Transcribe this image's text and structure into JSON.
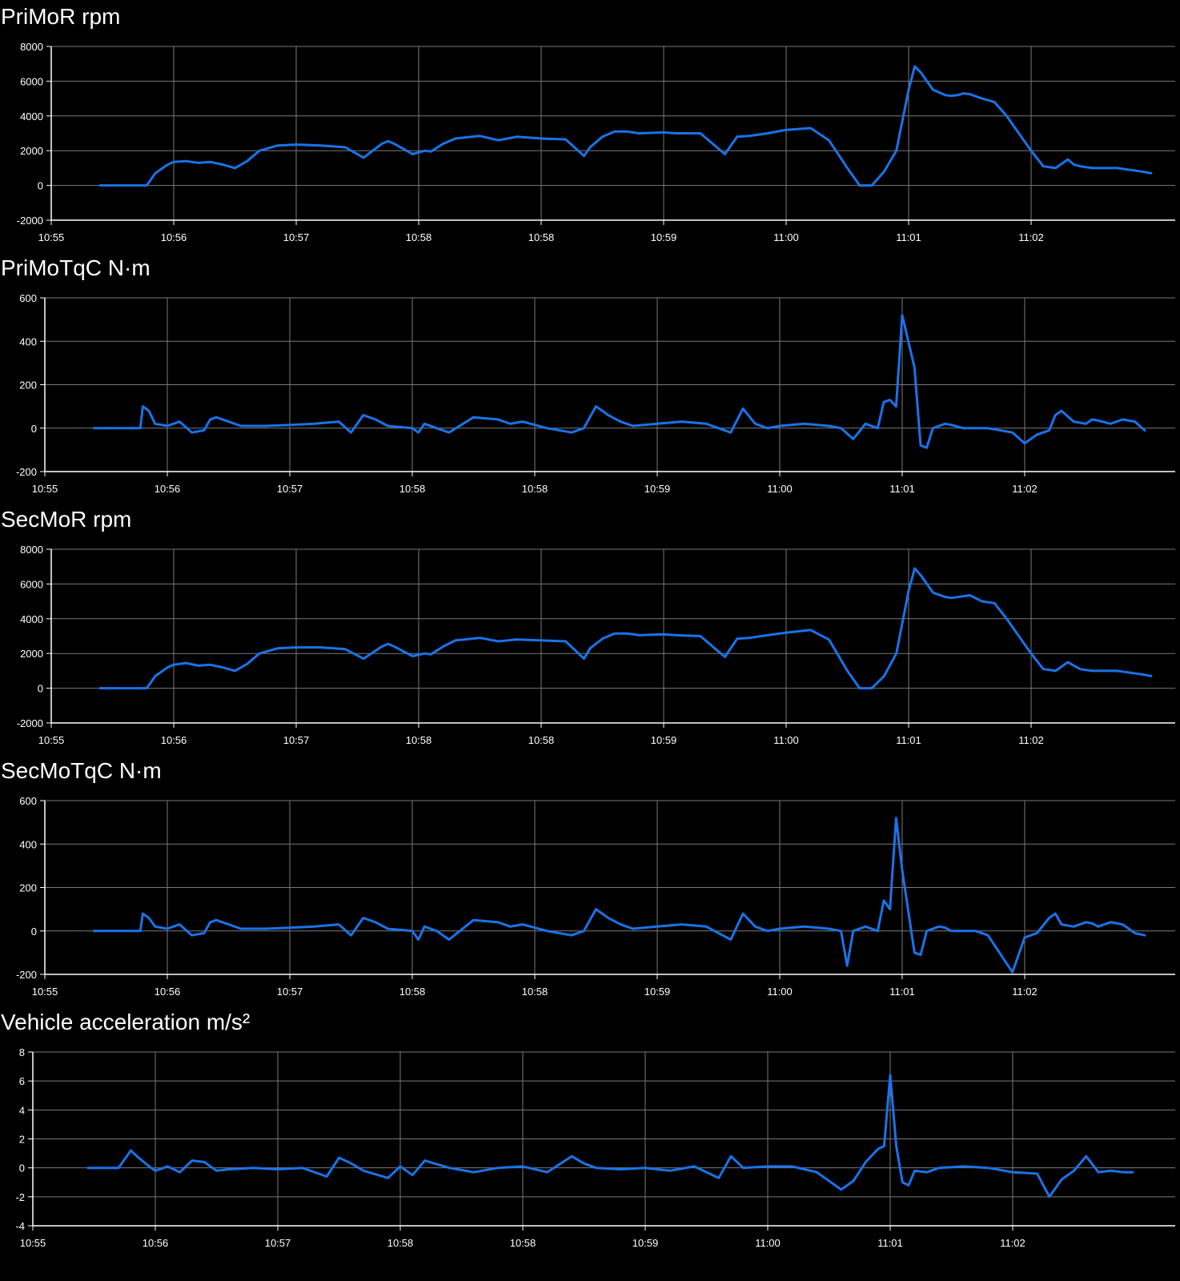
{
  "theme": {
    "background": "#000000",
    "line_color": "#1a73e8",
    "grid_color": "#7a7a7a",
    "text_color": "#ffffff"
  },
  "chart_data": [
    {
      "type": "line",
      "title": "PriMoR rpm",
      "ylim": [
        -2000,
        8000
      ],
      "yticks": [
        "8000",
        "6000",
        "4000",
        "2000",
        "0",
        "-2000"
      ],
      "xticks": [
        "10:55",
        "10:56",
        "10:57",
        "10:58",
        "10:58",
        "10:59",
        "11:00",
        "11:01",
        "11:02"
      ],
      "grid": true,
      "x": [
        0.4,
        0.6,
        0.78,
        0.85,
        0.95,
        1.0,
        1.1,
        1.2,
        1.3,
        1.4,
        1.5,
        1.6,
        1.7,
        1.85,
        2.0,
        2.2,
        2.4,
        2.55,
        2.7,
        2.75,
        2.8,
        2.95,
        3.05,
        3.1,
        3.2,
        3.3,
        3.5,
        3.65,
        3.8,
        4.0,
        4.2,
        4.35,
        4.4,
        4.5,
        4.6,
        4.7,
        4.8,
        5.0,
        5.1,
        5.3,
        5.5,
        5.6,
        5.7,
        5.85,
        6.0,
        6.2,
        6.35,
        6.5,
        6.6,
        6.7,
        6.8,
        6.9,
        7.0,
        7.05,
        7.1,
        7.2,
        7.3,
        7.35,
        7.4,
        7.45,
        7.5,
        7.6,
        7.7,
        7.8,
        8.0,
        8.1,
        8.2,
        8.3,
        8.35,
        8.4,
        8.45,
        8.5,
        8.7,
        8.9,
        8.98
      ],
      "y": [
        0,
        0,
        0,
        700,
        1200,
        1350,
        1400,
        1300,
        1350,
        1200,
        1000,
        1400,
        2000,
        2300,
        2350,
        2300,
        2200,
        1600,
        2400,
        2550,
        2400,
        1800,
        2000,
        1950,
        2400,
        2700,
        2850,
        2600,
        2800,
        2700,
        2650,
        1700,
        2200,
        2800,
        3100,
        3100,
        3000,
        3050,
        3000,
        3000,
        1800,
        2800,
        2850,
        3000,
        3200,
        3300,
        2600,
        1000,
        0,
        0,
        800,
        2000,
        5500,
        6850,
        6500,
        5500,
        5200,
        5150,
        5200,
        5300,
        5250,
        5000,
        4800,
        4000,
        2000,
        1100,
        1000,
        1500,
        1200,
        1100,
        1050,
        1000,
        1000,
        800,
        700
      ]
    },
    {
      "type": "line",
      "title": "PriMoTqC N·m",
      "ylim": [
        -200,
        600
      ],
      "yticks": [
        "600",
        "400",
        "200",
        "0",
        "-200"
      ],
      "xticks": [
        "10:55",
        "10:56",
        "10:57",
        "10:58",
        "10:58",
        "10:59",
        "11:00",
        "11:01",
        "11:02"
      ],
      "grid": true,
      "x": [
        0.4,
        0.6,
        0.78,
        0.8,
        0.85,
        0.9,
        1.0,
        1.1,
        1.15,
        1.2,
        1.3,
        1.35,
        1.4,
        1.5,
        1.6,
        1.8,
        2.0,
        2.2,
        2.4,
        2.5,
        2.6,
        2.7,
        2.8,
        3.0,
        3.05,
        3.1,
        3.2,
        3.3,
        3.5,
        3.7,
        3.8,
        3.9,
        4.1,
        4.3,
        4.4,
        4.5,
        4.6,
        4.7,
        4.8,
        5.0,
        5.2,
        5.4,
        5.6,
        5.7,
        5.8,
        5.9,
        6.0,
        6.2,
        6.4,
        6.5,
        6.6,
        6.7,
        6.8,
        6.85,
        6.9,
        6.95,
        7.0,
        7.1,
        7.15,
        7.2,
        7.25,
        7.3,
        7.35,
        7.4,
        7.5,
        7.6,
        7.7,
        7.9,
        8.0,
        8.1,
        8.2,
        8.25,
        8.3,
        8.4,
        8.5,
        8.55,
        8.6,
        8.7,
        8.8,
        8.9,
        8.98
      ],
      "y": [
        0,
        0,
        0,
        100,
        80,
        20,
        10,
        30,
        5,
        -20,
        -10,
        40,
        50,
        30,
        10,
        10,
        15,
        20,
        30,
        -20,
        60,
        40,
        10,
        0,
        -20,
        20,
        0,
        -20,
        50,
        40,
        20,
        30,
        0,
        -20,
        0,
        100,
        60,
        30,
        10,
        20,
        30,
        20,
        -20,
        90,
        20,
        0,
        10,
        20,
        10,
        0,
        -50,
        20,
        0,
        120,
        130,
        100,
        520,
        280,
        -80,
        -90,
        0,
        10,
        20,
        15,
        0,
        0,
        0,
        -20,
        -70,
        -30,
        -10,
        60,
        80,
        30,
        20,
        40,
        35,
        20,
        40,
        30,
        -10
      ]
    },
    {
      "type": "line",
      "title": "SecMoR rpm",
      "ylim": [
        -2000,
        8000
      ],
      "yticks": [
        "8000",
        "6000",
        "4000",
        "2000",
        "0",
        "-2000"
      ],
      "xticks": [
        "10:55",
        "10:56",
        "10:57",
        "10:58",
        "10:58",
        "10:59",
        "11:00",
        "11:01",
        "11:02"
      ],
      "grid": true,
      "x": [
        0.4,
        0.6,
        0.78,
        0.85,
        0.95,
        1.0,
        1.1,
        1.2,
        1.3,
        1.4,
        1.5,
        1.6,
        1.7,
        1.85,
        2.0,
        2.2,
        2.4,
        2.55,
        2.7,
        2.75,
        2.8,
        2.95,
        3.05,
        3.1,
        3.2,
        3.3,
        3.5,
        3.65,
        3.8,
        4.0,
        4.2,
        4.35,
        4.4,
        4.5,
        4.6,
        4.7,
        4.8,
        5.0,
        5.1,
        5.3,
        5.5,
        5.6,
        5.7,
        5.85,
        6.0,
        6.2,
        6.35,
        6.5,
        6.6,
        6.7,
        6.8,
        6.9,
        7.0,
        7.05,
        7.1,
        7.2,
        7.3,
        7.35,
        7.4,
        7.45,
        7.5,
        7.6,
        7.7,
        7.8,
        8.0,
        8.1,
        8.2,
        8.3,
        8.35,
        8.4,
        8.45,
        8.5,
        8.7,
        8.9,
        8.98
      ],
      "y": [
        0,
        0,
        0,
        700,
        1200,
        1350,
        1450,
        1300,
        1350,
        1200,
        1000,
        1400,
        2000,
        2300,
        2350,
        2350,
        2250,
        1700,
        2400,
        2550,
        2400,
        1850,
        2000,
        1950,
        2400,
        2750,
        2900,
        2700,
        2800,
        2750,
        2700,
        1700,
        2300,
        2850,
        3150,
        3150,
        3050,
        3100,
        3050,
        3000,
        1800,
        2850,
        2900,
        3050,
        3200,
        3350,
        2800,
        1000,
        0,
        0,
        700,
        2000,
        5600,
        6900,
        6500,
        5500,
        5250,
        5200,
        5250,
        5300,
        5350,
        5000,
        4900,
        4000,
        2000,
        1100,
        1000,
        1500,
        1300,
        1100,
        1050,
        1000,
        1000,
        800,
        700
      ]
    },
    {
      "type": "line",
      "title": "SecMoTqC N·m",
      "ylim": [
        -200,
        600
      ],
      "yticks": [
        "600",
        "400",
        "200",
        "0",
        "-200"
      ],
      "xticks": [
        "10:55",
        "10:56",
        "10:57",
        "10:58",
        "10:58",
        "10:59",
        "11:00",
        "11:01",
        "11:02"
      ],
      "grid": true,
      "x": [
        0.4,
        0.6,
        0.78,
        0.8,
        0.85,
        0.9,
        1.0,
        1.1,
        1.15,
        1.2,
        1.3,
        1.35,
        1.4,
        1.5,
        1.6,
        1.8,
        2.0,
        2.2,
        2.4,
        2.5,
        2.6,
        2.7,
        2.8,
        3.0,
        3.05,
        3.1,
        3.2,
        3.3,
        3.5,
        3.7,
        3.8,
        3.9,
        4.1,
        4.3,
        4.4,
        4.5,
        4.6,
        4.7,
        4.8,
        5.0,
        5.2,
        5.4,
        5.6,
        5.7,
        5.8,
        5.9,
        6.0,
        6.2,
        6.4,
        6.5,
        6.55,
        6.6,
        6.7,
        6.8,
        6.85,
        6.9,
        6.95,
        7.0,
        7.1,
        7.15,
        7.2,
        7.25,
        7.3,
        7.35,
        7.4,
        7.5,
        7.6,
        7.7,
        7.9,
        8.0,
        8.1,
        8.2,
        8.25,
        8.3,
        8.4,
        8.5,
        8.55,
        8.6,
        8.7,
        8.8,
        8.9,
        8.98
      ],
      "y": [
        0,
        0,
        0,
        80,
        60,
        20,
        10,
        30,
        5,
        -20,
        -10,
        40,
        50,
        30,
        10,
        10,
        15,
        20,
        30,
        -20,
        60,
        40,
        10,
        0,
        -40,
        20,
        0,
        -40,
        50,
        40,
        20,
        30,
        0,
        -20,
        0,
        100,
        60,
        30,
        10,
        20,
        30,
        20,
        -40,
        80,
        20,
        0,
        10,
        20,
        10,
        0,
        -160,
        0,
        20,
        0,
        140,
        100,
        520,
        280,
        -100,
        -110,
        0,
        10,
        20,
        15,
        0,
        0,
        0,
        -20,
        -190,
        -30,
        -10,
        60,
        80,
        30,
        20,
        40,
        35,
        20,
        40,
        30,
        -10,
        -20
      ]
    },
    {
      "type": "line",
      "title": "Vehicle acceleration m/s²",
      "ylim": [
        -4,
        8
      ],
      "yticks": [
        "8",
        "6",
        "4",
        "2",
        "0",
        "-2",
        "-4"
      ],
      "xticks": [
        "10:55",
        "10:56",
        "10:57",
        "10:58",
        "10:58",
        "10:59",
        "11:00",
        "11:01",
        "11:02"
      ],
      "grid": true,
      "x": [
        0.45,
        0.7,
        0.8,
        0.85,
        0.95,
        1.0,
        1.1,
        1.2,
        1.3,
        1.4,
        1.5,
        1.6,
        1.8,
        2.0,
        2.2,
        2.4,
        2.5,
        2.6,
        2.7,
        2.9,
        3.0,
        3.1,
        3.2,
        3.4,
        3.6,
        3.8,
        4.0,
        4.2,
        4.4,
        4.5,
        4.6,
        4.8,
        5.0,
        5.2,
        5.4,
        5.6,
        5.7,
        5.8,
        6.0,
        6.2,
        6.4,
        6.6,
        6.7,
        6.8,
        6.9,
        6.95,
        7.0,
        7.05,
        7.1,
        7.15,
        7.2,
        7.3,
        7.4,
        7.6,
        7.8,
        8.0,
        8.2,
        8.3,
        8.4,
        8.5,
        8.6,
        8.7,
        8.8,
        8.9,
        8.98
      ],
      "y": [
        0,
        0,
        1.2,
        0.8,
        0.1,
        -0.2,
        0.1,
        -0.3,
        0.5,
        0.4,
        -0.2,
        -0.1,
        0,
        -0.1,
        0,
        -0.6,
        0.7,
        0.3,
        -0.2,
        -0.7,
        0.1,
        -0.5,
        0.5,
        0,
        -0.3,
        0,
        0.1,
        -0.3,
        0.8,
        0.3,
        0,
        -0.1,
        0,
        -0.2,
        0.1,
        -0.7,
        0.8,
        0,
        0.1,
        0.1,
        -0.3,
        -1.5,
        -0.9,
        0.4,
        1.3,
        1.5,
        6.4,
        1.5,
        -1.0,
        -1.2,
        -0.2,
        -0.3,
        0,
        0.1,
        0,
        -0.3,
        -0.4,
        -2.0,
        -0.8,
        -0.2,
        0.8,
        -0.3,
        -0.2,
        -0.3,
        -0.3
      ]
    }
  ]
}
